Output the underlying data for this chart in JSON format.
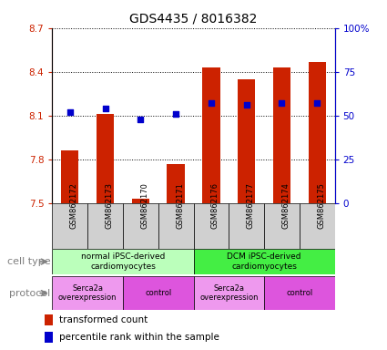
{
  "title": "GDS4435 / 8016382",
  "samples": [
    "GSM862172",
    "GSM862173",
    "GSM862170",
    "GSM862171",
    "GSM862176",
    "GSM862177",
    "GSM862174",
    "GSM862175"
  ],
  "bar_values": [
    7.86,
    8.11,
    7.53,
    7.77,
    8.43,
    8.35,
    8.43,
    8.47
  ],
  "percentile_values": [
    52,
    54,
    48,
    51,
    57,
    56,
    57,
    57
  ],
  "bar_bottom": 7.5,
  "ylim": [
    7.5,
    8.7
  ],
  "y2lim": [
    0,
    100
  ],
  "yticks": [
    7.5,
    7.8,
    8.1,
    8.4,
    8.7
  ],
  "y2ticks": [
    0,
    25,
    50,
    75,
    100
  ],
  "y2ticklabels": [
    "0",
    "25",
    "50",
    "75",
    "100%"
  ],
  "bar_color": "#cc2200",
  "dot_color": "#0000cc",
  "cell_type_groups": [
    {
      "label": "normal iPSC-derived\ncardiomyocytes",
      "start": 0,
      "end": 4,
      "color": "#bbffbb"
    },
    {
      "label": "DCM iPSC-derived\ncardiomyocytes",
      "start": 4,
      "end": 8,
      "color": "#44ee44"
    }
  ],
  "protocol_groups": [
    {
      "label": "Serca2a\noverexpression",
      "start": 0,
      "end": 2,
      "color": "#ee99ee"
    },
    {
      "label": "control",
      "start": 2,
      "end": 4,
      "color": "#dd55dd"
    },
    {
      "label": "Serca2a\noverexpression",
      "start": 4,
      "end": 6,
      "color": "#ee99ee"
    },
    {
      "label": "control",
      "start": 6,
      "end": 8,
      "color": "#dd55dd"
    }
  ],
  "sample_bg_color": "#d0d0d0",
  "legend_bar_label": "transformed count",
  "legend_dot_label": "percentile rank within the sample",
  "cell_type_label": "cell type",
  "protocol_label": "protocol",
  "title_fontsize": 10,
  "tick_fontsize": 7.5,
  "label_fontsize": 8,
  "sample_fontsize": 6,
  "legend_fontsize": 7.5
}
